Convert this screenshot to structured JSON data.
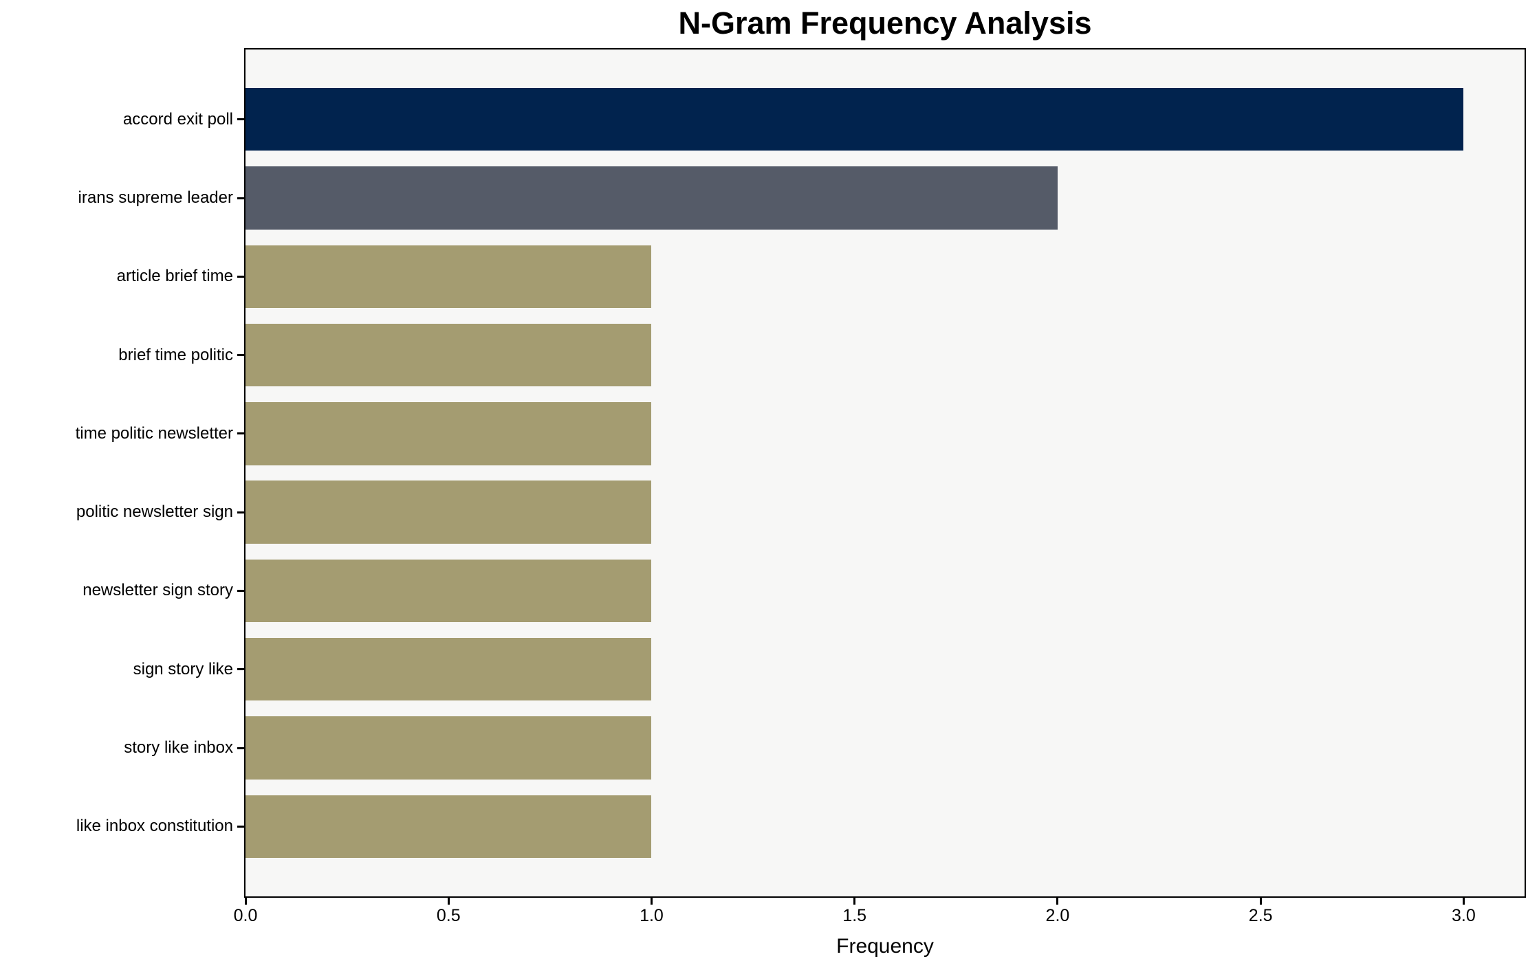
{
  "chart_data": {
    "type": "bar",
    "orientation": "horizontal",
    "title": "N-Gram Frequency Analysis",
    "xlabel": "Frequency",
    "ylabel": "",
    "categories": [
      "accord exit poll",
      "irans supreme leader",
      "article brief time",
      "brief time politic",
      "time politic newsletter",
      "politic newsletter sign",
      "newsletter sign story",
      "sign story like",
      "story like inbox",
      "like inbox constitution"
    ],
    "values": [
      3,
      2,
      1,
      1,
      1,
      1,
      1,
      1,
      1,
      1
    ],
    "bar_colors": [
      "#01234e",
      "#555b68",
      "#a49c71",
      "#a49c71",
      "#a49c71",
      "#a49c71",
      "#a49c71",
      "#a49c71",
      "#a49c71",
      "#a49c71"
    ],
    "xlim": [
      0,
      3.15
    ],
    "xticks": [
      {
        "label": "0.0",
        "value": 0.0
      },
      {
        "label": "0.5",
        "value": 0.5
      },
      {
        "label": "1.0",
        "value": 1.0
      },
      {
        "label": "1.5",
        "value": 1.5
      },
      {
        "label": "2.0",
        "value": 2.0
      },
      {
        "label": "2.5",
        "value": 2.5
      },
      {
        "label": "3.0",
        "value": 3.0
      }
    ],
    "grid": false,
    "legend": null,
    "plot_background": "#f7f7f6",
    "figure_background": "#ffffff",
    "spine_color": "#000000"
  }
}
